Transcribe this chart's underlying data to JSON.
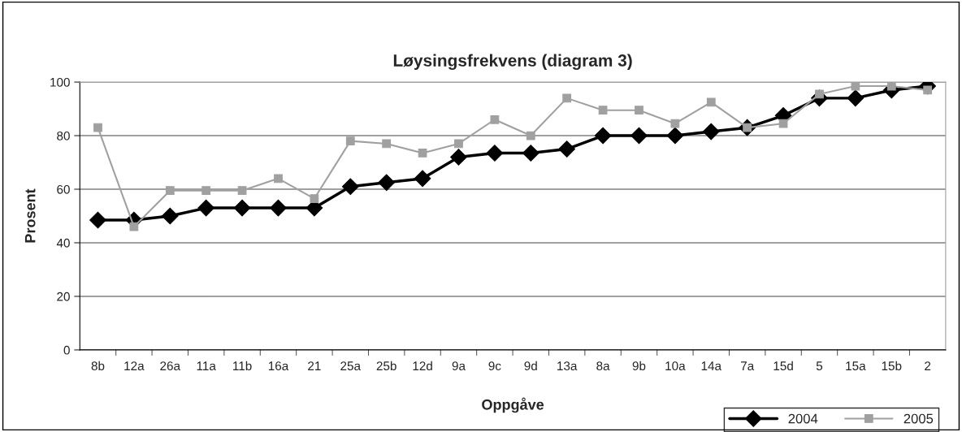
{
  "chart_data": {
    "type": "line",
    "title": "Løysingsfrekvens (diagram 3)",
    "xlabel": "Oppgåve",
    "ylabel": "Prosent",
    "categories": [
      "8b",
      "12a",
      "26a",
      "11a",
      "11b",
      "16a",
      "21",
      "25a",
      "25b",
      "12d",
      "9a",
      "9c",
      "9d",
      "13a",
      "8a",
      "9b",
      "10a",
      "14a",
      "7a",
      "15d",
      "5",
      "15a",
      "15b",
      "2"
    ],
    "series": [
      {
        "name": "2004",
        "color": "#000000",
        "marker": "diamond",
        "values": [
          48.5,
          48.5,
          50,
          53,
          53,
          53,
          53,
          61,
          62.5,
          64,
          72,
          73.5,
          73.5,
          75,
          80,
          80,
          80,
          81.5,
          83,
          87.5,
          94,
          94,
          97,
          98.5
        ]
      },
      {
        "name": "2005",
        "color": "#a0a0a0",
        "marker": "square",
        "values": [
          83,
          46,
          59.5,
          59.5,
          59.5,
          64,
          56.5,
          78,
          77,
          73.5,
          77,
          86,
          80,
          94,
          89.5,
          89.5,
          84.5,
          92.5,
          83,
          84.5,
          95.5,
          98.5,
          98.5,
          97
        ]
      }
    ],
    "ylim": [
      0,
      100
    ],
    "yticks": [
      0,
      20,
      40,
      60,
      80,
      100
    ],
    "grid": "y",
    "legend": "bottom right",
    "line_style": "solid"
  }
}
